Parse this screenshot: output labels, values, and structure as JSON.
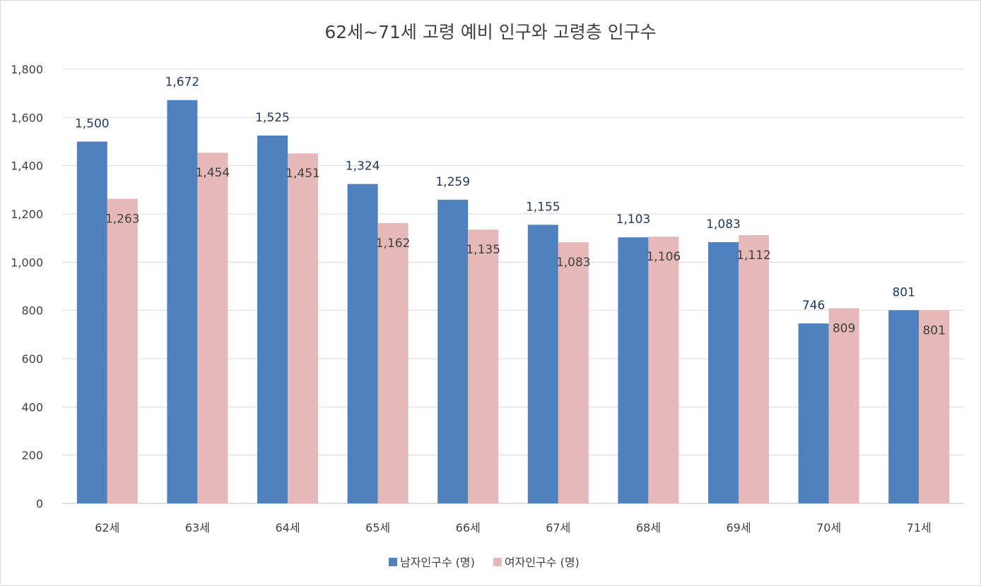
{
  "chart_data": {
    "type": "bar",
    "title": "62세~71세 고령 예비 인구와 고령층 인구수",
    "categories": [
      "62세",
      "63세",
      "64세",
      "65세",
      "66세",
      "67세",
      "68세",
      "69세",
      "70세",
      "71세"
    ],
    "series": [
      {
        "name": "남자인구수 (명)",
        "color": "#4e81bd",
        "values": [
          1500,
          1672,
          1525,
          1324,
          1259,
          1155,
          1103,
          1083,
          746,
          801
        ]
      },
      {
        "name": "여자인구수 (명)",
        "color": "#e6b9b8",
        "values": [
          1263,
          1454,
          1451,
          1162,
          1135,
          1083,
          1106,
          1112,
          809,
          801
        ]
      }
    ],
    "ylim": [
      0,
      1800
    ],
    "yticks": [
      0,
      200,
      400,
      600,
      800,
      1000,
      1200,
      1400,
      1600,
      1800
    ],
    "grid": true,
    "legend_position": "bottom"
  }
}
